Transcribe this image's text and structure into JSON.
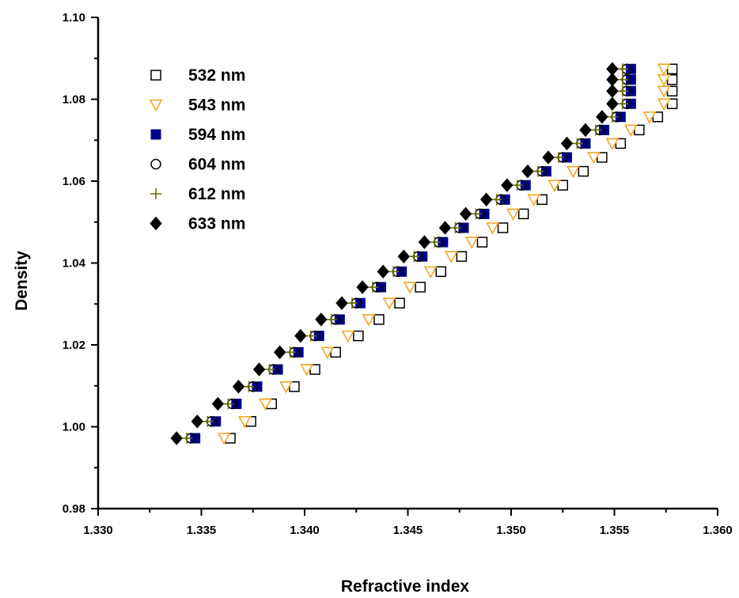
{
  "chart_data": {
    "type": "scatter",
    "title": "",
    "xlabel": "Refractive index",
    "ylabel": "Density",
    "xlim": [
      1.33,
      1.36
    ],
    "ylim": [
      0.98,
      1.1
    ],
    "xticks": [
      1.33,
      1.335,
      1.34,
      1.345,
      1.35,
      1.355,
      1.36
    ],
    "yticks": [
      0.98,
      1.0,
      1.02,
      1.04,
      1.06,
      1.08,
      1.1
    ],
    "xtick_labels": [
      "1.330",
      "1.335",
      "1.340",
      "1.345",
      "1.350",
      "1.355",
      "1.360"
    ],
    "ytick_labels": [
      "0.98",
      "1.00",
      "1.02",
      "1.04",
      "1.06",
      "1.08",
      "1.10"
    ],
    "grid": false,
    "legend_position": "top-left",
    "y": [
      0.9972,
      1.0013,
      1.0056,
      1.0098,
      1.014,
      1.0182,
      1.0222,
      1.0262,
      1.0302,
      1.0341,
      1.0379,
      1.0416,
      1.0451,
      1.0486,
      1.052,
      1.0555,
      1.059,
      1.0624,
      1.0658,
      1.0692,
      1.0725,
      1.0757,
      1.0789,
      1.082,
      1.0848,
      1.0874
    ],
    "series": [
      {
        "name": "532 nm",
        "marker": "open-square",
        "color": "#000000",
        "x": [
          1.3364,
          1.3374,
          1.3384,
          1.3395,
          1.3405,
          1.3415,
          1.3426,
          1.3436,
          1.3446,
          1.3456,
          1.3466,
          1.3476,
          1.3486,
          1.3496,
          1.3506,
          1.3515,
          1.3525,
          1.3535,
          1.3544,
          1.3553,
          1.3562,
          1.3571,
          1.3578,
          1.3578,
          1.3578,
          1.3578
        ]
      },
      {
        "name": "543 nm",
        "marker": "open-triangle-down",
        "color": "#f5a623",
        "x": [
          1.3361,
          1.3371,
          1.3381,
          1.3391,
          1.3401,
          1.3411,
          1.3421,
          1.3431,
          1.3441,
          1.3451,
          1.3461,
          1.3471,
          1.3481,
          1.3491,
          1.3501,
          1.3511,
          1.3521,
          1.353,
          1.354,
          1.3549,
          1.3558,
          1.3567,
          1.3574,
          1.3574,
          1.3574,
          1.3574
        ]
      },
      {
        "name": "594 nm",
        "marker": "filled-square",
        "color": "#00008b",
        "x": [
          1.3347,
          1.3357,
          1.3367,
          1.3377,
          1.3387,
          1.3397,
          1.3407,
          1.3417,
          1.3427,
          1.3437,
          1.3447,
          1.3457,
          1.3467,
          1.3477,
          1.3487,
          1.3497,
          1.3507,
          1.3517,
          1.3527,
          1.3536,
          1.3545,
          1.3553,
          1.3558,
          1.3558,
          1.3558,
          1.3558
        ]
      },
      {
        "name": "604 nm",
        "marker": "open-circle",
        "color": "#000000",
        "x": [
          1.3345,
          1.3355,
          1.3365,
          1.3375,
          1.3385,
          1.3395,
          1.3405,
          1.3415,
          1.3425,
          1.3435,
          1.3445,
          1.3455,
          1.3465,
          1.3475,
          1.3485,
          1.3495,
          1.3505,
          1.3515,
          1.3525,
          1.3534,
          1.3543,
          1.3551,
          1.3556,
          1.3556,
          1.3556,
          1.3556
        ]
      },
      {
        "name": "612 nm",
        "marker": "plus",
        "color": "#6b6b00",
        "x": [
          1.3343,
          1.3353,
          1.3363,
          1.3373,
          1.3383,
          1.3393,
          1.3403,
          1.3413,
          1.3423,
          1.3433,
          1.3443,
          1.3453,
          1.3463,
          1.3473,
          1.3483,
          1.3493,
          1.3503,
          1.3513,
          1.3523,
          1.3532,
          1.3541,
          1.3549,
          1.3554,
          1.3554,
          1.3554,
          1.3554
        ]
      },
      {
        "name": "633 nm",
        "marker": "filled-diamond",
        "color": "#000000",
        "x": [
          1.3338,
          1.3348,
          1.3358,
          1.3368,
          1.3378,
          1.3388,
          1.3398,
          1.3408,
          1.3418,
          1.3428,
          1.3438,
          1.3448,
          1.3458,
          1.3468,
          1.3478,
          1.3488,
          1.3498,
          1.3508,
          1.3518,
          1.3527,
          1.3536,
          1.3544,
          1.3549,
          1.3549,
          1.3549,
          1.3549
        ]
      }
    ]
  }
}
